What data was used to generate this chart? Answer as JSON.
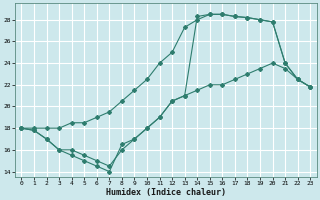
{
  "xlabel": "Humidex (Indice chaleur)",
  "bg_color": "#cde8ec",
  "grid_color": "#ffffff",
  "line_color": "#2e7d6e",
  "xlim": [
    -0.5,
    23.5
  ],
  "ylim": [
    13.5,
    29.5
  ],
  "xticks": [
    0,
    1,
    2,
    3,
    4,
    5,
    6,
    7,
    8,
    9,
    10,
    11,
    12,
    13,
    14,
    15,
    16,
    17,
    18,
    19,
    20,
    21,
    22,
    23
  ],
  "yticks": [
    14,
    16,
    18,
    20,
    22,
    24,
    26,
    28
  ],
  "curve1_x": [
    0,
    1,
    2,
    3,
    4,
    5,
    6,
    7,
    8,
    9,
    10,
    11,
    12,
    13,
    14,
    15,
    16,
    17,
    18,
    19,
    20,
    21,
    22,
    23
  ],
  "curve1_y": [
    18,
    17.8,
    17.0,
    16.0,
    15.5,
    15.0,
    14.5,
    14.0,
    16.5,
    17.0,
    18.0,
    19.0,
    20.5,
    21.0,
    21.5,
    22.0,
    22.0,
    22.5,
    23.0,
    23.5,
    24.0,
    23.5,
    22.5,
    21.8
  ],
  "curve2_x": [
    0,
    1,
    2,
    3,
    4,
    5,
    6,
    7,
    8,
    9,
    10,
    11,
    12,
    13,
    14,
    15,
    16,
    17,
    18,
    19,
    20,
    21,
    22,
    23
  ],
  "curve2_y": [
    18.0,
    18.0,
    18.0,
    18.0,
    18.5,
    18.5,
    19.0,
    19.5,
    20.5,
    21.5,
    22.5,
    24.0,
    25.0,
    27.3,
    28.0,
    28.5,
    28.5,
    28.3,
    28.2,
    28.0,
    27.8,
    24.0,
    22.5,
    21.8
  ],
  "curve3_x": [
    0,
    1,
    2,
    3,
    4,
    5,
    6,
    7,
    8,
    9,
    10,
    11,
    12,
    13,
    14,
    15,
    16,
    17,
    18,
    19,
    20,
    21,
    22,
    23
  ],
  "curve3_y": [
    18.0,
    17.8,
    17.0,
    16.0,
    16.0,
    15.5,
    15.0,
    14.5,
    16.0,
    17.0,
    18.0,
    19.0,
    20.5,
    21.0,
    28.3,
    28.5,
    28.5,
    28.3,
    28.2,
    28.0,
    27.8,
    24.0,
    22.5,
    21.8
  ]
}
